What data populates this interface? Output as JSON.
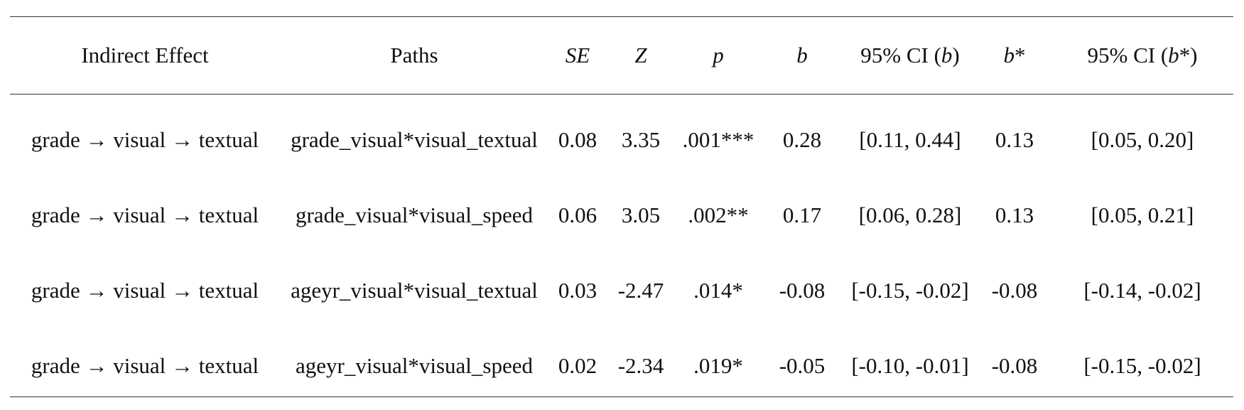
{
  "table": {
    "headers": {
      "indirect_effect": "Indirect Effect",
      "paths": "Paths",
      "se": "SE",
      "z": "Z",
      "p": "p",
      "b": "b",
      "ci_b_prefix": "95% CI (",
      "ci_b_italic": "b",
      "ci_b_suffix": ")",
      "b_star_italic": "b",
      "b_star_suffix": "*",
      "ci_bstar_prefix": "95% CI (",
      "ci_bstar_italic": "b",
      "ci_bstar_suffix": "*)"
    },
    "rows": [
      {
        "indirect_effect": "grade → visual → textual",
        "paths": "grade_visual*visual_textual",
        "se": "0.08",
        "z": "3.35",
        "p": ".001***",
        "b": "0.28",
        "ci_b": "[0.11, 0.44]",
        "b_star": "0.13",
        "ci_b_star": "[0.05, 0.20]"
      },
      {
        "indirect_effect": "grade → visual → textual",
        "paths": "grade_visual*visual_speed",
        "se": "0.06",
        "z": "3.05",
        "p": ".002**",
        "b": "0.17",
        "ci_b": "[0.06, 0.28]",
        "b_star": "0.13",
        "ci_b_star": "[0.05, 0.21]"
      },
      {
        "indirect_effect": "grade → visual → textual",
        "paths": "ageyr_visual*visual_textual",
        "se": "0.03",
        "z": "-2.47",
        "p": ".014*",
        "b": "-0.08",
        "ci_b": "[-0.15, -0.02]",
        "b_star": "-0.08",
        "ci_b_star": "[-0.14, -0.02]"
      },
      {
        "indirect_effect": "grade → visual → textual",
        "paths": "ageyr_visual*visual_speed",
        "se": "0.02",
        "z": "-2.34",
        "p": ".019*",
        "b": "-0.05",
        "ci_b": "[-0.10, -0.01]",
        "b_star": "-0.08",
        "ci_b_star": "[-0.15, -0.02]"
      }
    ]
  }
}
